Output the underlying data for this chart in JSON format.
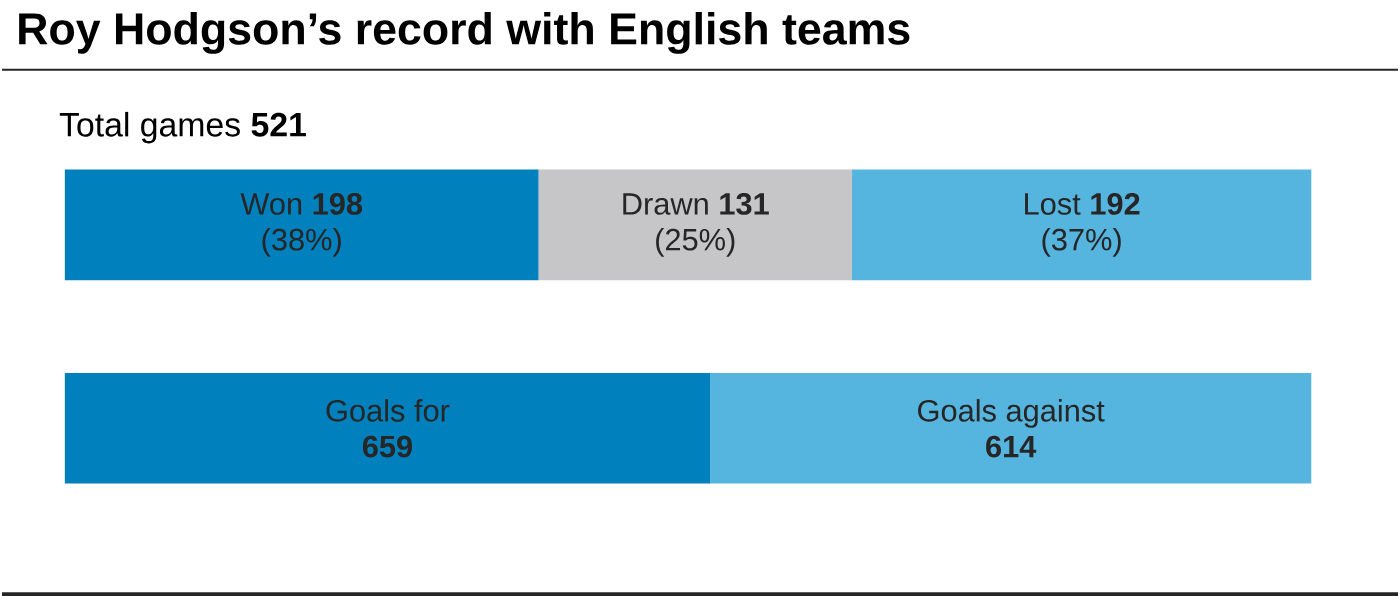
{
  "chart_data": [
    {
      "type": "bar",
      "orientation": "horizontal",
      "stacked": true,
      "title": "Roy Hodgson’s record with English teams",
      "subtitle": "Total games **521**",
      "categories": [
        null
      ],
      "data_labels": true,
      "annotations": [
        "(38%)",
        "(25%)",
        "(37%)"
      ],
      "series": [
        {
          "name": "Won",
          "color": "#0080bd",
          "values": [
            198
          ]
        },
        {
          "name": "Drawn",
          "color": "#c6c6c8",
          "values": [
            131
          ]
        },
        {
          "name": "Lost",
          "color": "#56b5df",
          "values": [
            192
          ]
        }
      ]
    },
    {
      "type": "bar",
      "orientation": "horizontal",
      "stacked": true,
      "categories": [
        null
      ],
      "data_labels": true,
      "series": [
        {
          "name": "Goals for",
          "color": "#0080bd",
          "values": [
            659
          ]
        },
        {
          "name": "Goals against",
          "color": "#56b5df",
          "values": [
            614
          ]
        }
      ]
    }
  ]
}
